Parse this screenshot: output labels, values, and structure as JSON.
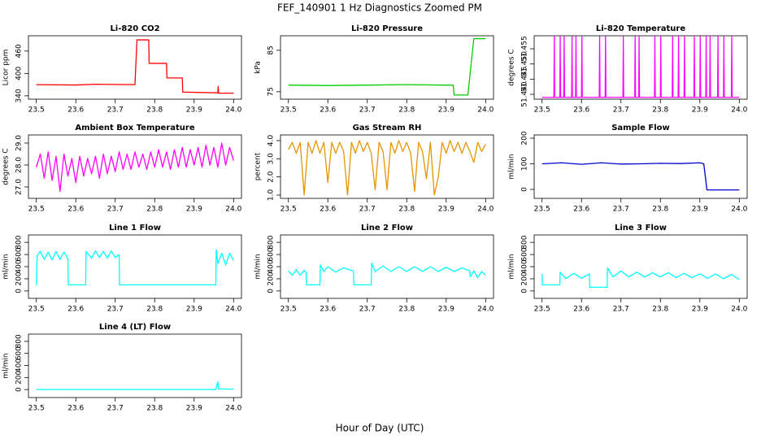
{
  "title": "FEF_140901  1 Hz Diagnostics Zoomed PM",
  "xlabel": "Hour of Day (UTC)",
  "chart_data": [
    {
      "type": "line",
      "title": "Li-820 CO2",
      "ylabel": "Licor ppm",
      "color": "#ff0000",
      "xlim": [
        23.48,
        24.02
      ],
      "xticks": [
        23.5,
        23.6,
        23.7,
        23.8,
        23.9,
        {
          "value": 24.0,
          "label": "24.0"
        }
      ],
      "ylim": [
        331,
        501
      ],
      "yticks": [
        340,
        400,
        460
      ],
      "x": [
        23.5,
        23.6,
        23.65,
        23.75,
        23.755,
        23.785,
        23.786,
        23.83,
        23.831,
        23.87,
        23.871,
        23.96,
        23.961,
        23.962,
        24.0
      ],
      "values": [
        370,
        369,
        371,
        370,
        490,
        490,
        427,
        427,
        388,
        388,
        350,
        348,
        365,
        347,
        347
      ]
    },
    {
      "type": "line",
      "title": "Li-820 Pressure",
      "ylabel": "kPa",
      "color": "#00cc00",
      "xlim": [
        23.48,
        24.02
      ],
      "xticks": [
        23.5,
        23.6,
        23.7,
        23.8,
        23.9,
        {
          "value": 24.0,
          "label": "24.0"
        }
      ],
      "ylim": [
        73.2,
        88.5
      ],
      "yticks": [
        75,
        85
      ],
      "x": [
        23.5,
        23.6,
        23.7,
        23.8,
        23.9,
        23.918,
        23.92,
        23.955,
        23.97,
        24.0
      ],
      "values": [
        76.6,
        76.5,
        76.6,
        76.7,
        76.6,
        76.6,
        74.2,
        74.2,
        87.8,
        87.8
      ]
    },
    {
      "type": "line",
      "title": "Li-820 Temperature",
      "ylabel": "degrees C",
      "color": "#ff00ff",
      "xlim": [
        23.48,
        24.02
      ],
      "xticks": [
        23.5,
        23.6,
        23.7,
        23.8,
        23.9,
        {
          "value": 24.0,
          "label": "24.0"
        }
      ],
      "ylim": [
        51.4384,
        51.4593
      ],
      "yticks": [
        {
          "value": 51.44,
          "label": "51.440"
        },
        51.445,
        {
          "value": 51.45,
          "label": "51.450"
        },
        51.455
      ],
      "x": [
        23.5,
        23.53,
        23.531,
        23.532,
        23.545,
        23.546,
        23.547,
        23.555,
        23.556,
        23.557,
        23.575,
        23.576,
        23.577,
        23.585,
        23.586,
        23.587,
        23.6,
        23.601,
        23.602,
        23.645,
        23.646,
        23.647,
        23.66,
        23.661,
        23.662,
        23.705,
        23.706,
        23.707,
        23.735,
        23.736,
        23.737,
        23.745,
        23.746,
        23.747,
        23.785,
        23.786,
        23.787,
        23.8,
        23.801,
        23.802,
        23.83,
        23.831,
        23.832,
        23.845,
        23.846,
        23.847,
        23.86,
        23.861,
        23.862,
        23.885,
        23.886,
        23.887,
        23.9,
        23.901,
        23.902,
        23.915,
        23.916,
        23.917,
        23.925,
        23.926,
        23.927,
        23.945,
        23.946,
        23.947,
        23.96,
        23.961,
        23.962,
        23.98,
        23.981,
        23.982,
        24.0
      ],
      "values": [
        51.439,
        51.439,
        51.459,
        51.439,
        51.439,
        51.459,
        51.439,
        51.439,
        51.459,
        51.439,
        51.439,
        51.459,
        51.439,
        51.439,
        51.459,
        51.439,
        51.439,
        51.459,
        51.439,
        51.439,
        51.459,
        51.439,
        51.439,
        51.459,
        51.439,
        51.439,
        51.459,
        51.439,
        51.439,
        51.459,
        51.439,
        51.439,
        51.459,
        51.439,
        51.439,
        51.459,
        51.439,
        51.439,
        51.459,
        51.439,
        51.439,
        51.459,
        51.439,
        51.439,
        51.459,
        51.439,
        51.439,
        51.459,
        51.439,
        51.439,
        51.459,
        51.439,
        51.439,
        51.459,
        51.439,
        51.439,
        51.459,
        51.439,
        51.439,
        51.459,
        51.439,
        51.439,
        51.459,
        51.439,
        51.439,
        51.459,
        51.439,
        51.439,
        51.459,
        51.439,
        51.439
      ]
    },
    {
      "type": "line",
      "title": "Ambient Box Temperature",
      "ylabel": "degrees C",
      "color": "#ff00ff",
      "xlim": [
        23.48,
        24.02
      ],
      "xticks": [
        23.5,
        23.6,
        23.7,
        23.8,
        23.9,
        {
          "value": 24.0,
          "label": "24.0"
        }
      ],
      "ylim": [
        26.48,
        29.37
      ],
      "yticks": [
        {
          "value": 27,
          "label": "27.0"
        },
        {
          "value": 28,
          "label": "28.0"
        },
        {
          "value": 29,
          "label": "29.0"
        }
      ],
      "x": [
        23.5,
        23.51,
        23.52,
        23.53,
        23.54,
        23.55,
        23.56,
        23.57,
        23.58,
        23.59,
        23.6,
        23.61,
        23.62,
        23.63,
        23.64,
        23.65,
        23.66,
        23.67,
        23.68,
        23.69,
        23.7,
        23.71,
        23.72,
        23.73,
        23.74,
        23.75,
        23.76,
        23.77,
        23.78,
        23.79,
        23.8,
        23.81,
        23.82,
        23.83,
        23.84,
        23.85,
        23.86,
        23.87,
        23.88,
        23.89,
        23.9,
        23.91,
        23.92,
        23.93,
        23.94,
        23.95,
        23.96,
        23.97,
        23.98,
        23.99,
        24.0
      ],
      "values": [
        27.9,
        28.5,
        27.4,
        28.6,
        27.3,
        28.4,
        26.8,
        28.5,
        27.5,
        28.3,
        27.2,
        28.4,
        27.5,
        28.3,
        27.6,
        28.4,
        27.4,
        28.5,
        27.6,
        28.4,
        27.7,
        28.6,
        27.8,
        28.5,
        27.8,
        28.6,
        27.9,
        28.5,
        27.8,
        28.6,
        27.9,
        28.7,
        27.9,
        28.6,
        27.8,
        28.7,
        27.9,
        28.8,
        27.9,
        28.7,
        28.0,
        28.8,
        27.9,
        28.9,
        28.0,
        28.8,
        27.9,
        29.0,
        28.0,
        28.8,
        28.2
      ]
    },
    {
      "type": "line",
      "title": "Gas Stream RH",
      "ylabel": "percent",
      "color": "#e69500",
      "xlim": [
        23.48,
        24.02
      ],
      "xticks": [
        23.5,
        23.6,
        23.7,
        23.8,
        23.9,
        {
          "value": 24.0,
          "label": "24.0"
        }
      ],
      "ylim": [
        0.82,
        4.31
      ],
      "yticks": [
        {
          "value": 1,
          "label": "1.0"
        },
        {
          "value": 2,
          "label": "2.0"
        },
        {
          "value": 3,
          "label": "3.0"
        },
        {
          "value": 4,
          "label": "4.0"
        }
      ],
      "x": [
        23.5,
        23.51,
        23.52,
        23.53,
        23.54,
        23.55,
        23.56,
        23.57,
        23.58,
        23.59,
        23.6,
        23.61,
        23.62,
        23.63,
        23.64,
        23.65,
        23.66,
        23.67,
        23.68,
        23.69,
        23.7,
        23.71,
        23.72,
        23.73,
        23.74,
        23.75,
        23.76,
        23.77,
        23.78,
        23.79,
        23.8,
        23.81,
        23.82,
        23.83,
        23.84,
        23.85,
        23.86,
        23.87,
        23.88,
        23.89,
        23.9,
        23.91,
        23.92,
        23.93,
        23.94,
        23.95,
        23.96,
        23.97,
        23.98,
        23.99,
        24.0
      ],
      "values": [
        3.5,
        3.9,
        3.3,
        3.9,
        1.0,
        3.9,
        3.3,
        4.0,
        3.3,
        3.9,
        1.7,
        3.9,
        3.3,
        3.9,
        3.4,
        1.0,
        3.9,
        3.3,
        4.0,
        3.4,
        3.9,
        3.3,
        1.3,
        3.9,
        3.4,
        1.3,
        3.9,
        3.3,
        4.0,
        3.4,
        3.9,
        3.3,
        1.2,
        3.9,
        3.4,
        1.9,
        3.9,
        1.0,
        2.0,
        3.9,
        3.3,
        4.0,
        3.4,
        3.9,
        3.3,
        3.9,
        3.4,
        2.8,
        3.9,
        3.4,
        3.8
      ]
    },
    {
      "type": "line",
      "title": "Sample Flow",
      "ylabel": "ml/min",
      "color": "#0000cc",
      "xlim": [
        23.48,
        24.02
      ],
      "xticks": [
        23.5,
        23.6,
        23.7,
        23.8,
        23.9,
        {
          "value": 24.0,
          "label": "24.0"
        }
      ],
      "ylim": [
        -35,
        212.7
      ],
      "yticks": [
        0,
        100,
        200
      ],
      "x": [
        23.5,
        23.55,
        23.6,
        23.65,
        23.7,
        23.75,
        23.8,
        23.85,
        23.9,
        23.91,
        23.918,
        24.0
      ],
      "values": [
        100,
        104,
        98,
        104,
        99,
        100,
        102,
        101,
        104,
        100,
        -2,
        -2
      ]
    },
    {
      "type": "line",
      "title": "Line 1 Flow",
      "ylabel": "ml/min",
      "color": "#00ffff",
      "xlim": [
        23.48,
        24.02
      ],
      "xticks": [
        23.5,
        23.6,
        23.7,
        23.8,
        23.9,
        {
          "value": 24.0,
          "label": "24.0"
        }
      ],
      "ylim": [
        -122,
        922
      ],
      "yticks": [
        0,
        200,
        400,
        600,
        800
      ],
      "x": [
        23.5,
        23.502,
        23.51,
        23.52,
        23.53,
        23.54,
        23.55,
        23.56,
        23.57,
        23.58,
        23.581,
        23.625,
        23.626,
        23.64,
        23.65,
        23.66,
        23.67,
        23.68,
        23.69,
        23.7,
        23.71,
        23.711,
        23.955,
        23.956,
        23.96,
        23.97,
        23.98,
        23.99,
        24.0
      ],
      "values": [
        100,
        580,
        650,
        520,
        640,
        510,
        650,
        520,
        640,
        530,
        100,
        100,
        650,
        540,
        660,
        550,
        650,
        540,
        660,
        550,
        600,
        100,
        100,
        680,
        450,
        620,
        430,
        620,
        500
      ]
    },
    {
      "type": "line",
      "title": "Line 2 Flow",
      "ylabel": "ml/min",
      "color": "#00ffff",
      "xlim": [
        23.48,
        24.02
      ],
      "xticks": [
        23.5,
        23.6,
        23.7,
        23.8,
        23.9,
        {
          "value": 24.0,
          "label": "24.0"
        }
      ],
      "ylim": [
        -122,
        922
      ],
      "yticks": [
        0,
        200,
        400,
        600,
        800
      ],
      "x": [
        23.5,
        23.51,
        23.52,
        23.53,
        23.54,
        23.545,
        23.546,
        23.58,
        23.581,
        23.59,
        23.6,
        23.62,
        23.64,
        23.665,
        23.666,
        23.71,
        23.711,
        23.72,
        23.74,
        23.76,
        23.78,
        23.8,
        23.82,
        23.84,
        23.86,
        23.88,
        23.9,
        23.92,
        23.94,
        23.96,
        23.961,
        23.97,
        23.98,
        23.99,
        24.0
      ],
      "values": [
        330,
        260,
        350,
        260,
        340,
        300,
        100,
        100,
        430,
        320,
        400,
        310,
        380,
        330,
        100,
        100,
        460,
        320,
        410,
        320,
        400,
        320,
        400,
        320,
        400,
        320,
        390,
        320,
        380,
        330,
        230,
        330,
        220,
        320,
        260
      ]
    },
    {
      "type": "line",
      "title": "Line 3 Flow",
      "ylabel": "ml/min",
      "color": "#00ffff",
      "xlim": [
        23.48,
        24.02
      ],
      "xticks": [
        23.5,
        23.6,
        23.7,
        23.8,
        23.9,
        {
          "value": 24.0,
          "label": "24.0"
        }
      ],
      "ylim": [
        -122,
        922
      ],
      "yticks": [
        0,
        200,
        400,
        600,
        800
      ],
      "x": [
        23.5,
        23.501,
        23.545,
        23.546,
        23.56,
        23.58,
        23.6,
        23.62,
        23.621,
        23.665,
        23.666,
        23.68,
        23.7,
        23.72,
        23.74,
        23.76,
        23.78,
        23.8,
        23.82,
        23.84,
        23.86,
        23.88,
        23.9,
        23.92,
        23.94,
        23.96,
        23.98,
        24.0
      ],
      "values": [
        280,
        100,
        100,
        310,
        200,
        290,
        210,
        280,
        60,
        60,
        380,
        230,
        330,
        230,
        310,
        230,
        300,
        230,
        300,
        220,
        290,
        220,
        280,
        210,
        280,
        200,
        270,
        190
      ]
    },
    {
      "type": "line",
      "title": "Line 4 (LT) Flow",
      "ylabel": "ml/min",
      "color": "#00ffff",
      "xlim": [
        23.48,
        24.02
      ],
      "xticks": [
        23.5,
        23.6,
        23.7,
        23.8,
        23.9,
        {
          "value": 24.0,
          "label": "24.0"
        }
      ],
      "ylim": [
        -133,
        920
      ],
      "yticks": [
        0,
        200,
        400,
        600,
        800
      ],
      "x": [
        23.5,
        23.955,
        23.96,
        23.962,
        24.0
      ],
      "values": [
        0,
        0,
        130,
        10,
        5
      ]
    }
  ]
}
